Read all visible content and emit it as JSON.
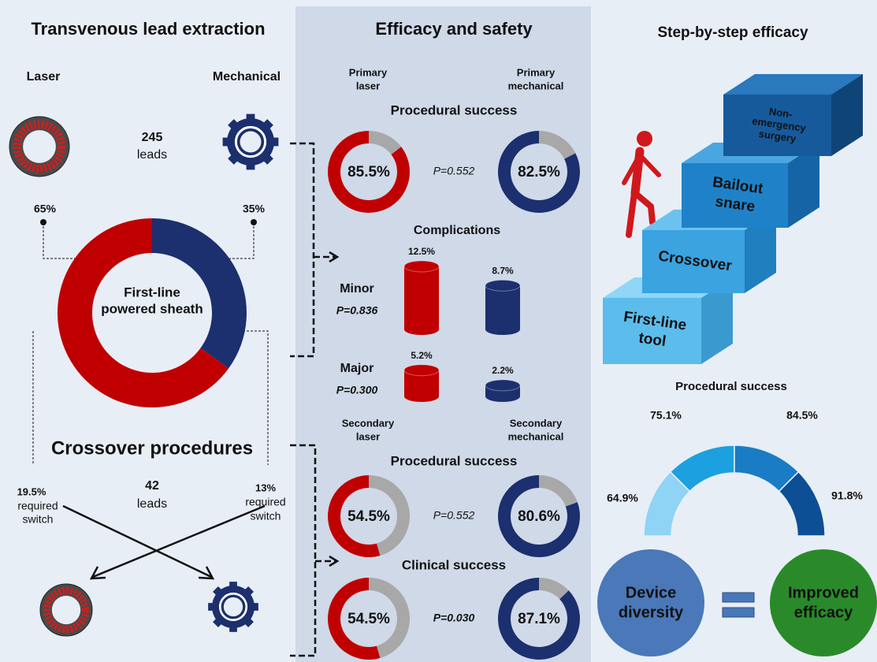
{
  "colors": {
    "laser": "#c00000",
    "mechanical": "#1c2f6e",
    "rest": "#a8a8a8"
  },
  "left": {
    "title": "Transvenous lead extraction",
    "laser_label": "Laser",
    "mechanical_label": "Mechanical",
    "leads": {
      "count": "245",
      "unit": "leads"
    },
    "first_line": {
      "laser": {
        "value": 65,
        "label": "65%"
      },
      "mechanical": {
        "value": 35,
        "label": "35%"
      },
      "center_lines": [
        "First-line",
        "powered sheath"
      ]
    },
    "crossover": {
      "title": "Crossover procedures",
      "count": "42",
      "unit": "leads",
      "laser_switch": {
        "value": "19.5%",
        "lines": [
          "required",
          "switch"
        ]
      },
      "mechanical_switch": {
        "value": "13%",
        "lines": [
          "required",
          "switch"
        ]
      }
    }
  },
  "middle": {
    "title": "Efficacy and safety",
    "primary": {
      "laser": [
        "Primary",
        "laser"
      ],
      "mechanical": [
        "Primary",
        "mechanical"
      ]
    },
    "procedural": {
      "title": "Procedural success",
      "laser": {
        "value": 85.5,
        "label": "85.5%"
      },
      "mechanical": {
        "value": 82.5,
        "label": "82.5%"
      },
      "p": "P=0.552"
    },
    "complications": {
      "title": "Complications",
      "minor": {
        "name": "Minor",
        "p": "P=0.836",
        "laser": {
          "value": 12.5,
          "label": "12.5%"
        },
        "mechanical": {
          "value": 8.7,
          "label": "8.7%"
        }
      },
      "major": {
        "name": "Major",
        "p": "P=0.300",
        "laser": {
          "value": 5.2,
          "label": "5.2%"
        },
        "mechanical": {
          "value": 2.2,
          "label": "2.2%"
        }
      }
    },
    "secondary": {
      "laser": [
        "Secondary",
        "laser"
      ],
      "mechanical": [
        "Secondary",
        "mechanical"
      ]
    },
    "secondary_procedural": {
      "title": "Procedural success",
      "laser": {
        "value": 54.5,
        "label": "54.5%"
      },
      "mechanical": {
        "value": 80.6,
        "label": "80.6%"
      },
      "p": "P=0.552"
    },
    "clinical": {
      "title": "Clinical success",
      "laser": {
        "value": 54.5,
        "label": "54.5%"
      },
      "mechanical": {
        "value": 87.1,
        "label": "87.1%"
      },
      "p": "P=0.030"
    }
  },
  "right": {
    "title": "Step-by-step efficacy",
    "steps": [
      [
        "First-line",
        "tool"
      ],
      [
        "Crossover"
      ],
      [
        "Bailout",
        "snare"
      ],
      [
        "Non-",
        "emergency",
        "surgery"
      ]
    ],
    "procedural": {
      "title": "Procedural success",
      "values": [
        {
          "value": 64.9,
          "label": "64.9%"
        },
        {
          "value": 75.1,
          "label": "75.1%"
        },
        {
          "value": 84.5,
          "label": "84.5%"
        },
        {
          "value": 91.8,
          "label": "91.8%"
        }
      ]
    },
    "equation": {
      "left": [
        "Device",
        "diversity"
      ],
      "right": [
        "Improved",
        "efficacy"
      ]
    }
  }
}
